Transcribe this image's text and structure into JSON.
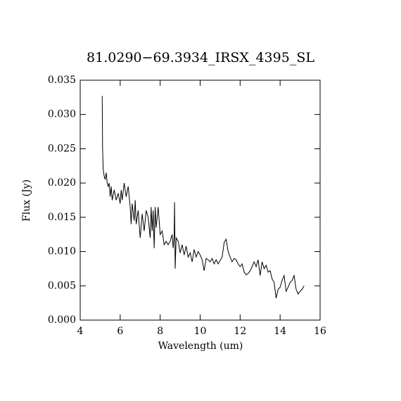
{
  "chart_data": {
    "type": "line",
    "title": "81.0290−69.3934_IRSX_4395_SL",
    "x_label": "Wavelength (um)",
    "y_label": "Flux (Jy)",
    "color": "#000000",
    "xlim": [
      4,
      16
    ],
    "ylim": [
      0,
      0.035
    ],
    "xticks": [
      4,
      6,
      8,
      10,
      12,
      14,
      16
    ],
    "yticks": [
      {
        "value": 0,
        "label": "0.000"
      },
      {
        "value": 0.005,
        "label": "0.005"
      },
      {
        "value": 0.01,
        "label": "0.010"
      },
      {
        "value": 0.015,
        "label": "0.015"
      },
      {
        "value": 0.02,
        "label": "0.020"
      },
      {
        "value": 0.025,
        "label": "0.025"
      },
      {
        "value": 0.03,
        "label": "0.030"
      },
      {
        "value": 0.035,
        "label": "0.035"
      }
    ],
    "x": [
      5.1,
      5.12,
      5.15,
      5.2,
      5.25,
      5.3,
      5.35,
      5.4,
      5.45,
      5.5,
      5.55,
      5.6,
      5.7,
      5.8,
      5.9,
      6.0,
      6.05,
      6.1,
      6.2,
      6.3,
      6.4,
      6.5,
      6.55,
      6.6,
      6.7,
      6.75,
      6.8,
      6.9,
      7.0,
      7.1,
      7.2,
      7.3,
      7.4,
      7.5,
      7.55,
      7.6,
      7.65,
      7.7,
      7.75,
      7.8,
      7.9,
      8.0,
      8.1,
      8.2,
      8.3,
      8.4,
      8.5,
      8.6,
      8.65,
      8.7,
      8.72,
      8.75,
      8.8,
      8.9,
      9.0,
      9.1,
      9.2,
      9.3,
      9.4,
      9.5,
      9.6,
      9.7,
      9.8,
      9.9,
      10.0,
      10.1,
      10.2,
      10.3,
      10.4,
      10.5,
      10.6,
      10.7,
      10.8,
      10.9,
      11.0,
      11.1,
      11.2,
      11.3,
      11.4,
      11.5,
      11.6,
      11.7,
      11.8,
      11.9,
      12.0,
      12.1,
      12.2,
      12.3,
      12.4,
      12.5,
      12.6,
      12.7,
      12.8,
      12.9,
      13.0,
      13.1,
      13.2,
      13.3,
      13.4,
      13.5,
      13.6,
      13.7,
      13.8,
      13.9,
      14.0,
      14.1,
      14.2,
      14.3,
      14.4,
      14.5,
      14.6,
      14.7,
      14.8,
      14.9,
      15.0,
      15.1,
      15.2
    ],
    "values": [
      0.0327,
      0.025,
      0.022,
      0.021,
      0.0205,
      0.0215,
      0.02,
      0.0195,
      0.02,
      0.018,
      0.0195,
      0.0175,
      0.019,
      0.0175,
      0.0185,
      0.017,
      0.019,
      0.0175,
      0.02,
      0.018,
      0.0195,
      0.0165,
      0.014,
      0.017,
      0.0145,
      0.0175,
      0.014,
      0.016,
      0.012,
      0.0155,
      0.013,
      0.016,
      0.015,
      0.012,
      0.0165,
      0.013,
      0.016,
      0.0105,
      0.0165,
      0.0135,
      0.0165,
      0.0125,
      0.013,
      0.011,
      0.0115,
      0.011,
      0.0115,
      0.0125,
      0.0105,
      0.0123,
      0.0172,
      0.0075,
      0.012,
      0.0115,
      0.0098,
      0.011,
      0.0095,
      0.0108,
      0.0092,
      0.0098,
      0.0085,
      0.0103,
      0.0092,
      0.01,
      0.0095,
      0.0088,
      0.0072,
      0.009,
      0.0088,
      0.0085,
      0.009,
      0.0082,
      0.0088,
      0.0082,
      0.0087,
      0.0092,
      0.0113,
      0.0118,
      0.01,
      0.0092,
      0.0085,
      0.009,
      0.0088,
      0.0082,
      0.0078,
      0.0082,
      0.007,
      0.0066,
      0.0068,
      0.0072,
      0.0078,
      0.0085,
      0.0078,
      0.0088,
      0.0065,
      0.0085,
      0.0075,
      0.008,
      0.007,
      0.0072,
      0.006,
      0.0055,
      0.0032,
      0.0045,
      0.0048,
      0.0058,
      0.0065,
      0.0042,
      0.0048,
      0.0055,
      0.0058,
      0.0065,
      0.0045,
      0.0038,
      0.0042,
      0.0045,
      0.005
    ]
  }
}
